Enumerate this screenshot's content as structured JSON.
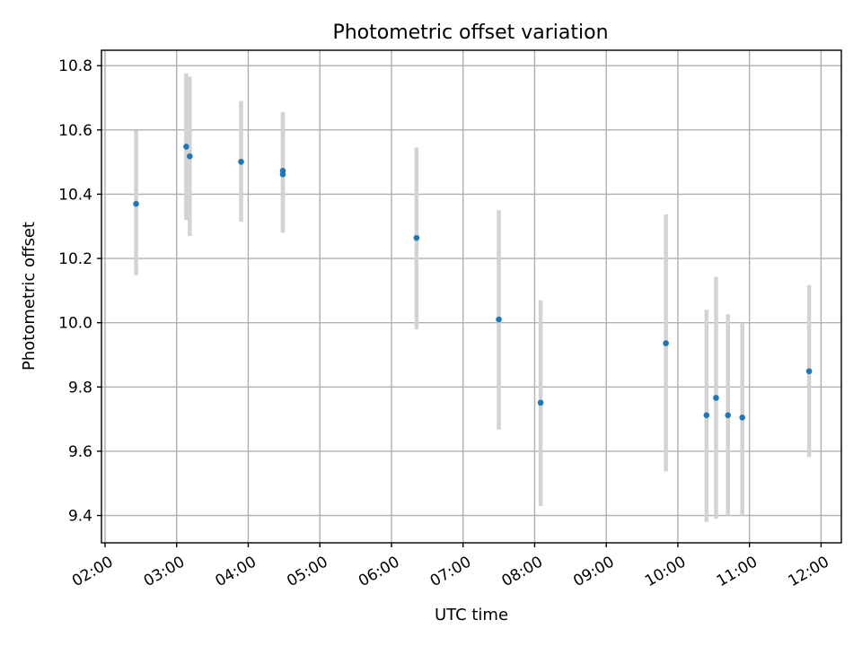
{
  "chart_data": {
    "type": "scatter",
    "title": "Photometric offset variation",
    "xlabel": "UTC time",
    "ylabel": "Photometric offset",
    "xlim": [
      "01:57",
      "12:17"
    ],
    "ylim": [
      9.315,
      10.848
    ],
    "grid": true,
    "x_ticks": [
      "02:00",
      "03:00",
      "04:00",
      "05:00",
      "06:00",
      "07:00",
      "08:00",
      "09:00",
      "10:00",
      "11:00",
      "12:00"
    ],
    "y_ticks": [
      9.4,
      9.6,
      9.8,
      10.0,
      10.2,
      10.4,
      10.6,
      10.8
    ],
    "y_tick_labels": [
      "9.4",
      "9.6",
      "9.8",
      "10.0",
      "10.2",
      "10.4",
      "10.6",
      "10.8"
    ],
    "series": [
      {
        "points": [
          {
            "x": "02:26",
            "y": 10.37,
            "err_low": 10.148,
            "err_high": 10.598
          },
          {
            "x": "03:08",
            "y": 10.548,
            "err_low": 10.32,
            "err_high": 10.776
          },
          {
            "x": "03:11",
            "y": 10.518,
            "err_low": 10.27,
            "err_high": 10.766
          },
          {
            "x": "03:54",
            "y": 10.501,
            "err_low": 10.314,
            "err_high": 10.69
          },
          {
            "x": "04:29",
            "y": 10.473,
            "err_low": 10.28,
            "err_high": 10.655
          },
          {
            "x": "04:29",
            "y": 10.462,
            "err_low": 10.28,
            "err_high": 10.655
          },
          {
            "x": "06:21",
            "y": 10.264,
            "err_low": 9.98,
            "err_high": 10.545
          },
          {
            "x": "07:30",
            "y": 10.01,
            "err_low": 9.668,
            "err_high": 10.35
          },
          {
            "x": "08:05",
            "y": 9.751,
            "err_low": 9.43,
            "err_high": 10.07
          },
          {
            "x": "09:50",
            "y": 9.936,
            "err_low": 9.537,
            "err_high": 10.337
          },
          {
            "x": "10:24",
            "y": 9.712,
            "err_low": 9.38,
            "err_high": 10.04
          },
          {
            "x": "10:32",
            "y": 9.766,
            "err_low": 9.39,
            "err_high": 10.143
          },
          {
            "x": "10:42",
            "y": 9.712,
            "err_low": 9.4,
            "err_high": 10.026
          },
          {
            "x": "10:54",
            "y": 9.705,
            "err_low": 9.4,
            "err_high": 10.0
          },
          {
            "x": "11:50",
            "y": 9.849,
            "err_low": 9.582,
            "err_high": 10.117
          }
        ],
        "marker_color": "#1f77b4",
        "errorbar_color": "#d3d3d3"
      }
    ]
  }
}
